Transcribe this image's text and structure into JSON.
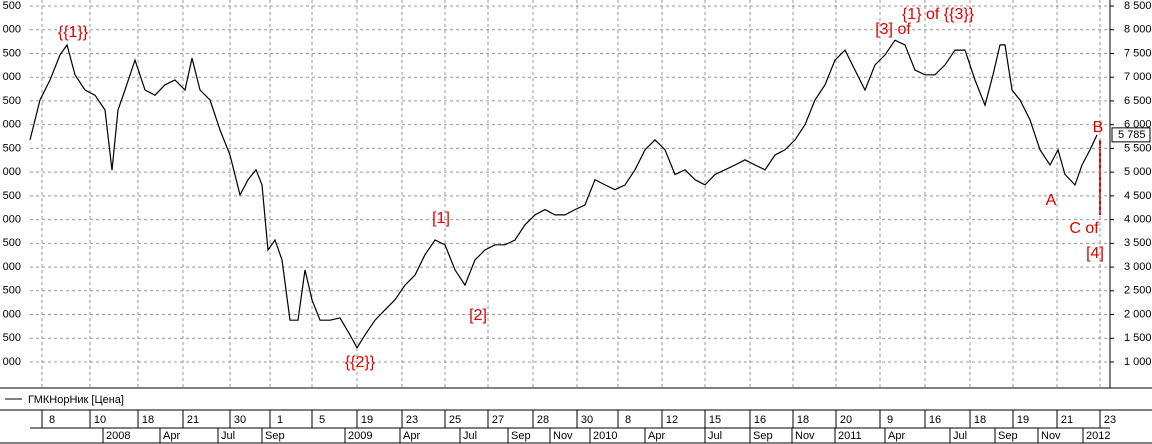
{
  "chart_data": {
    "type": "line",
    "legend": "ГМКНорНик [Цена]",
    "grid": true,
    "series": [
      {
        "name": "ГМКНорНик [Цена]",
        "color": "#000000",
        "x": [
          0,
          1,
          2,
          3,
          3.7,
          4.5,
          5.5,
          6.5,
          7.5,
          8.2,
          8.8,
          9.5,
          10.5,
          11.5,
          12.5,
          13.5,
          14.5,
          15.5,
          16.2,
          17,
          18,
          19,
          20,
          21,
          21.8,
          22.6,
          23.2,
          23.8,
          24.5,
          25.2,
          26,
          26.8,
          27.5,
          28.2,
          29,
          30,
          31,
          32,
          32.7,
          33.5,
          34.5,
          35.5,
          36.5,
          37.5,
          38.5,
          39.5,
          40.5,
          41.5,
          42.5,
          43.5,
          44.5,
          45.5,
          46.5,
          47.5,
          48.5,
          49.5,
          50.5,
          51.5,
          52.5,
          53.5,
          54.5,
          55.5,
          56.5,
          57.5,
          58.5,
          59.5,
          60.5,
          61.5,
          62.5,
          63.5,
          64.5,
          65.5,
          66.5,
          67.5,
          68.5,
          69.5,
          70.5,
          71.5,
          72.5,
          73.5,
          74.5,
          75.5,
          76.5,
          77.5,
          78.5,
          79.5,
          80.5,
          81.5,
          82.5,
          83.5,
          84.5,
          85.5,
          86.5,
          87.5,
          88.5,
          89.5,
          90.5,
          91.5,
          92.5,
          93.5,
          94.5,
          95.5,
          96.3,
          97,
          97.5,
          98.2,
          99,
          100,
          101,
          102,
          102.8,
          103.5,
          104.5,
          105.2,
          106,
          106.7
        ],
        "values": [
          5680,
          6520,
          6940,
          7470,
          7680,
          7050,
          6730,
          6620,
          6310,
          5040,
          6310,
          6730,
          7360,
          6730,
          6620,
          6840,
          6940,
          6730,
          7400,
          6730,
          6520,
          5890,
          5360,
          4520,
          4840,
          5050,
          4730,
          3360,
          3570,
          3150,
          1880,
          1880,
          2940,
          2310,
          1880,
          1880,
          1930,
          1570,
          1300,
          1570,
          1880,
          2100,
          2310,
          2620,
          2830,
          3260,
          3570,
          3470,
          2940,
          2620,
          3150,
          3360,
          3470,
          3470,
          3570,
          3890,
          4100,
          4210,
          4100,
          4100,
          4210,
          4310,
          4840,
          4730,
          4630,
          4730,
          5050,
          5470,
          5680,
          5470,
          4950,
          5050,
          4840,
          4730,
          4950,
          5050,
          5150,
          5260,
          5150,
          5050,
          5360,
          5470,
          5680,
          6000,
          6520,
          6840,
          7360,
          7570,
          7150,
          6730,
          7260,
          7470,
          7780,
          7680,
          7150,
          7050,
          7050,
          7260,
          7570,
          7570,
          6940,
          6410,
          7050,
          7680,
          7680,
          6730,
          6520,
          6100,
          5470,
          5150,
          5470,
          4950,
          4730,
          5150,
          5470,
          5785
        ]
      }
    ],
    "last_price": 5785,
    "last_price_label": "5 785",
    "xlim": [
      0,
      108
    ],
    "ylim": [
      1000,
      8500
    ],
    "yticks": [
      {
        "value": 1000,
        "label": "1 000"
      },
      {
        "value": 1500,
        "label": "1 500"
      },
      {
        "value": 2000,
        "label": "2 000"
      },
      {
        "value": 2500,
        "label": "2 500"
      },
      {
        "value": 3000,
        "label": "3 000"
      },
      {
        "value": 3500,
        "label": "3 500"
      },
      {
        "value": 4000,
        "label": "4 000"
      },
      {
        "value": 4500,
        "label": "4 500"
      },
      {
        "value": 5000,
        "label": "5 000"
      },
      {
        "value": 5500,
        "label": "5 500"
      },
      {
        "value": 6000,
        "label": "6 000"
      },
      {
        "value": 6500,
        "label": "6 500"
      },
      {
        "value": 7000,
        "label": "7 000"
      },
      {
        "value": 7500,
        "label": "7 500"
      },
      {
        "value": 8000,
        "label": "8 000"
      },
      {
        "value": 8500,
        "label": "8 500"
      }
    ],
    "xticks": [
      {
        "value": 1.2,
        "label": "8"
      },
      {
        "value": 6,
        "label": "10"
      },
      {
        "value": 10.8,
        "label": "18"
      },
      {
        "value": 15.3,
        "label": "21"
      },
      {
        "value": 20,
        "label": "30"
      },
      {
        "value": 24,
        "label": "1"
      },
      {
        "value": 28.2,
        "label": "5"
      },
      {
        "value": 32.7,
        "label": "19"
      },
      {
        "value": 37.2,
        "label": "23"
      },
      {
        "value": 41.5,
        "label": "25"
      },
      {
        "value": 45.8,
        "label": "27"
      },
      {
        "value": 50.3,
        "label": "28"
      },
      {
        "value": 54.7,
        "label": "30"
      },
      {
        "value": 58.8,
        "label": "8"
      },
      {
        "value": 63.2,
        "label": "12"
      },
      {
        "value": 67.5,
        "label": "15"
      },
      {
        "value": 72,
        "label": "16"
      },
      {
        "value": 76.3,
        "label": "18"
      },
      {
        "value": 80.6,
        "label": "20"
      },
      {
        "value": 85,
        "label": "9"
      },
      {
        "value": 89.5,
        "label": "16"
      },
      {
        "value": 94,
        "label": "18"
      },
      {
        "value": 98.3,
        "label": "19"
      },
      {
        "value": 102.7,
        "label": "21"
      },
      {
        "value": 107,
        "label": "23"
      }
    ],
    "month_ticks": [
      {
        "value": 7.3,
        "label": "2008"
      },
      {
        "value": 13,
        "label": "Apr"
      },
      {
        "value": 18.8,
        "label": "Jul"
      },
      {
        "value": 23.2,
        "label": "Sep"
      },
      {
        "value": 31.5,
        "label": "2009"
      },
      {
        "value": 37,
        "label": "Apr"
      },
      {
        "value": 43,
        "label": "Jul"
      },
      {
        "value": 47.8,
        "label": "Sep"
      },
      {
        "value": 52,
        "label": "Nov"
      },
      {
        "value": 56,
        "label": "2010"
      },
      {
        "value": 61.5,
        "label": "Apr"
      },
      {
        "value": 67.5,
        "label": "Jul"
      },
      {
        "value": 72,
        "label": "Sep"
      },
      {
        "value": 76.2,
        "label": "Nov"
      },
      {
        "value": 80.5,
        "label": "2011"
      },
      {
        "value": 85.5,
        "label": "Apr"
      },
      {
        "value": 92,
        "label": "Jul"
      },
      {
        "value": 96.5,
        "label": "Sep"
      },
      {
        "value": 100.8,
        "label": "Nov"
      },
      {
        "value": 105.3,
        "label": "2012"
      }
    ],
    "annotations": [
      "{{1}}",
      "{{2}}",
      "[1]",
      "[2]",
      "[3] of",
      "{1} of {{3}}",
      "A",
      "B",
      "C of",
      "[4]"
    ]
  }
}
